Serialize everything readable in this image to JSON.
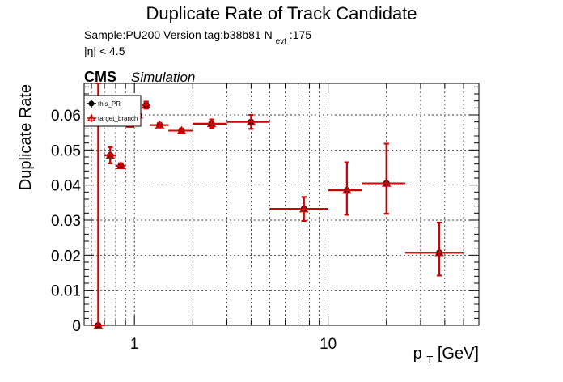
{
  "chart_data": {
    "type": "scatter",
    "title": "Duplicate Rate of Track Candidate",
    "info": {
      "sample_line": "Sample:PU200   Version tag:b38b81  N",
      "nevt_sub": "evt",
      "nevt_value": ":175",
      "eta_cut": "|η| < 4.5",
      "cms_label": "CMS",
      "simulation_label": "Simulation"
    },
    "xlabel": "p",
    "xlabel_sub": "T",
    "xlabel_unit": " [GeV]",
    "ylabel": "Duplicate Rate",
    "x_scale": "log",
    "xlim": [
      0.55,
      60
    ],
    "ylim": [
      0,
      0.069
    ],
    "x_ticks": [
      1,
      10
    ],
    "y_ticks": [
      "0",
      "0.01",
      "0.02",
      "0.03",
      "0.04",
      "0.05",
      "0.06"
    ],
    "grid": true,
    "legend_position": "top-left",
    "series": [
      {
        "name": "this_PR",
        "color": "#000000",
        "marker": "circle",
        "points": [
          {
            "x": 0.65,
            "xlo": 0.6,
            "xhi": 0.7,
            "y": 0.0,
            "ylo": 0.0,
            "yhi": 0.069
          },
          {
            "x": 0.75,
            "xlo": 0.7,
            "xhi": 0.8,
            "y": 0.0485,
            "ylo": 0.0462,
            "yhi": 0.0508
          },
          {
            "x": 0.85,
            "xlo": 0.8,
            "xhi": 0.9,
            "y": 0.0455,
            "ylo": 0.0448,
            "yhi": 0.0462
          },
          {
            "x": 0.95,
            "xlo": 0.9,
            "xhi": 1.0,
            "y": 0.0573,
            "ylo": 0.057,
            "yhi": 0.0576
          },
          {
            "x": 1.05,
            "xlo": 1.0,
            "xhi": 1.1,
            "y": 0.06,
            "ylo": 0.0596,
            "yhi": 0.0604
          },
          {
            "x": 1.15,
            "xlo": 1.1,
            "xhi": 1.2,
            "y": 0.0628,
            "ylo": 0.0618,
            "yhi": 0.0638
          },
          {
            "x": 1.35,
            "xlo": 1.2,
            "xhi": 1.5,
            "y": 0.0571,
            "ylo": 0.0565,
            "yhi": 0.0577
          },
          {
            "x": 1.75,
            "xlo": 1.5,
            "xhi": 2.0,
            "y": 0.0555,
            "ylo": 0.0549,
            "yhi": 0.0561
          },
          {
            "x": 2.5,
            "xlo": 2.0,
            "xhi": 3.0,
            "y": 0.0575,
            "ylo": 0.0563,
            "yhi": 0.0587
          },
          {
            "x": 4.0,
            "xlo": 3.0,
            "xhi": 5.0,
            "y": 0.058,
            "ylo": 0.056,
            "yhi": 0.06
          },
          {
            "x": 7.5,
            "xlo": 5.0,
            "xhi": 10.0,
            "y": 0.0332,
            "ylo": 0.0298,
            "yhi": 0.0366
          },
          {
            "x": 12.5,
            "xlo": 10.0,
            "xhi": 15.0,
            "y": 0.0385,
            "ylo": 0.0315,
            "yhi": 0.0465
          },
          {
            "x": 20.0,
            "xlo": 15.0,
            "xhi": 25.0,
            "y": 0.0405,
            "ylo": 0.0318,
            "yhi": 0.0518
          },
          {
            "x": 37.5,
            "xlo": 25.0,
            "xhi": 50.0,
            "y": 0.0207,
            "ylo": 0.0142,
            "yhi": 0.0293
          }
        ]
      },
      {
        "name": "target_branch",
        "color": "#d40000",
        "marker": "triangle-open",
        "points": [
          {
            "x": 0.65,
            "xlo": 0.6,
            "xhi": 0.7,
            "y": 0.0,
            "ylo": 0.0,
            "yhi": 0.069
          },
          {
            "x": 0.75,
            "xlo": 0.7,
            "xhi": 0.8,
            "y": 0.0485,
            "ylo": 0.0462,
            "yhi": 0.0508
          },
          {
            "x": 0.85,
            "xlo": 0.8,
            "xhi": 0.9,
            "y": 0.0455,
            "ylo": 0.0448,
            "yhi": 0.0462
          },
          {
            "x": 0.95,
            "xlo": 0.9,
            "xhi": 1.0,
            "y": 0.0573,
            "ylo": 0.057,
            "yhi": 0.0576
          },
          {
            "x": 1.05,
            "xlo": 1.0,
            "xhi": 1.1,
            "y": 0.06,
            "ylo": 0.0596,
            "yhi": 0.0604
          },
          {
            "x": 1.15,
            "xlo": 1.1,
            "xhi": 1.2,
            "y": 0.0628,
            "ylo": 0.0618,
            "yhi": 0.0638
          },
          {
            "x": 1.35,
            "xlo": 1.2,
            "xhi": 1.5,
            "y": 0.0571,
            "ylo": 0.0565,
            "yhi": 0.0577
          },
          {
            "x": 1.75,
            "xlo": 1.5,
            "xhi": 2.0,
            "y": 0.0555,
            "ylo": 0.0549,
            "yhi": 0.0561
          },
          {
            "x": 2.5,
            "xlo": 2.0,
            "xhi": 3.0,
            "y": 0.0575,
            "ylo": 0.0563,
            "yhi": 0.0587
          },
          {
            "x": 4.0,
            "xlo": 3.0,
            "xhi": 5.0,
            "y": 0.058,
            "ylo": 0.056,
            "yhi": 0.06
          },
          {
            "x": 7.5,
            "xlo": 5.0,
            "xhi": 10.0,
            "y": 0.0332,
            "ylo": 0.0298,
            "yhi": 0.0366
          },
          {
            "x": 12.5,
            "xlo": 10.0,
            "xhi": 15.0,
            "y": 0.0385,
            "ylo": 0.0315,
            "yhi": 0.0465
          },
          {
            "x": 20.0,
            "xlo": 15.0,
            "xhi": 25.0,
            "y": 0.0405,
            "ylo": 0.0318,
            "yhi": 0.0518
          },
          {
            "x": 37.5,
            "xlo": 25.0,
            "xhi": 50.0,
            "y": 0.0207,
            "ylo": 0.0142,
            "yhi": 0.0293
          }
        ]
      }
    ]
  }
}
